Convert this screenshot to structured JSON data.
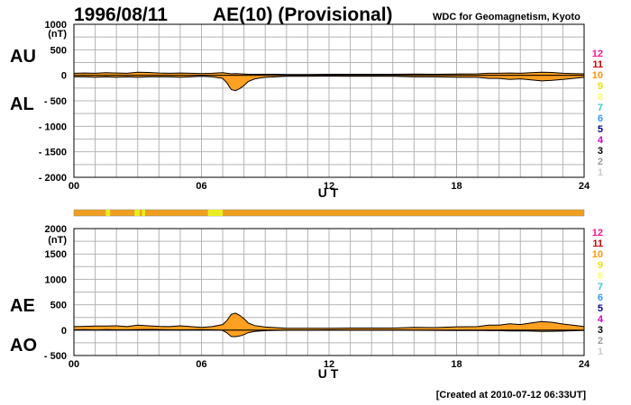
{
  "header": {
    "date": "1996/08/11",
    "title": "AE(10) (Provisional)",
    "source": "WDC for Geomagnetism, Kyoto",
    "created": "[Created at 2010-07-12 06:33UT]"
  },
  "legend": {
    "labels": [
      "12",
      "11",
      "10",
      "9",
      "8",
      "7",
      "6",
      "5",
      "4",
      "3",
      "2",
      "1"
    ],
    "colors": [
      "#ff1493",
      "#cc0000",
      "#ff9900",
      "#e6e600",
      "#ffff66",
      "#33cccc",
      "#3399ff",
      "#000099",
      "#cc00cc",
      "#000000",
      "#999999",
      "#cccccc"
    ]
  },
  "colors": {
    "fill": "#ffa020",
    "line": "#000000",
    "bar": "#f0a020",
    "bar_highlight": "#e6f020",
    "grid": "#b4b4b4"
  },
  "chart_data": [
    {
      "type": "area",
      "name": "AU/AL",
      "panel_labels": [
        "AU",
        "AL"
      ],
      "unit": "(nT)",
      "xlabel": "U T",
      "x_ticks": [
        "00",
        "06",
        "12",
        "18",
        "24"
      ],
      "xlim": [
        0,
        24
      ],
      "ylim": [
        -2000,
        1000
      ],
      "y_ticks": [
        "1000",
        "500",
        "0",
        "- 500",
        "- 1000",
        "- 1500",
        "- 2000"
      ],
      "y_tick_values": [
        1000,
        500,
        0,
        -500,
        -1000,
        -1500,
        -2000
      ],
      "grid": true,
      "x": [
        0,
        0.5,
        1,
        1.5,
        2,
        2.5,
        3,
        3.5,
        4,
        4.5,
        5,
        5.5,
        6,
        6.5,
        7,
        7.2,
        7.4,
        7.6,
        7.8,
        8,
        8.2,
        8.5,
        9,
        9.5,
        10,
        11,
        12,
        13,
        14,
        15,
        16,
        17,
        18,
        19,
        19.5,
        20,
        20.5,
        21,
        21.5,
        22,
        22.5,
        23,
        23.5,
        24
      ],
      "series": [
        {
          "name": "AU",
          "values": [
            40,
            45,
            40,
            50,
            45,
            40,
            60,
            55,
            45,
            40,
            45,
            40,
            35,
            40,
            50,
            40,
            30,
            35,
            30,
            25,
            20,
            20,
            20,
            20,
            15,
            15,
            20,
            20,
            20,
            20,
            25,
            20,
            25,
            30,
            40,
            40,
            45,
            40,
            50,
            60,
            55,
            40,
            35,
            30
          ]
        },
        {
          "name": "AL",
          "values": [
            -30,
            -30,
            -40,
            -30,
            -40,
            -30,
            -40,
            -30,
            -30,
            -30,
            -40,
            -30,
            -20,
            -30,
            -60,
            -150,
            -280,
            -300,
            -260,
            -200,
            -120,
            -70,
            -40,
            -30,
            -20,
            -20,
            -15,
            -20,
            -20,
            -20,
            -30,
            -30,
            -40,
            -40,
            -60,
            -60,
            -80,
            -70,
            -90,
            -110,
            -100,
            -80,
            -60,
            -40
          ]
        }
      ]
    },
    {
      "type": "area",
      "name": "AE/AO",
      "panel_labels": [
        "AE",
        "AO"
      ],
      "unit": "(nT)",
      "xlabel": "U T",
      "x_ticks": [
        "00",
        "06",
        "12",
        "18",
        "24"
      ],
      "xlim": [
        0,
        24
      ],
      "ylim": [
        -500,
        2000
      ],
      "y_ticks": [
        "2000",
        "1500",
        "1000",
        "500",
        "0",
        "- 500"
      ],
      "y_tick_values": [
        2000,
        1500,
        1000,
        500,
        0,
        -500
      ],
      "grid": true,
      "x": [
        0,
        0.5,
        1,
        1.5,
        2,
        2.5,
        3,
        3.5,
        4,
        4.5,
        5,
        5.5,
        6,
        6.5,
        7,
        7.2,
        7.4,
        7.6,
        7.8,
        8,
        8.2,
        8.5,
        9,
        9.5,
        10,
        11,
        12,
        13,
        14,
        15,
        16,
        17,
        18,
        19,
        19.5,
        20,
        20.5,
        21,
        21.5,
        22,
        22.5,
        23,
        23.5,
        24
      ],
      "series": [
        {
          "name": "AE",
          "values": [
            70,
            75,
            80,
            80,
            85,
            70,
            100,
            85,
            75,
            70,
            85,
            70,
            55,
            70,
            110,
            190,
            310,
            335,
            290,
            225,
            140,
            90,
            60,
            50,
            35,
            35,
            35,
            40,
            40,
            40,
            55,
            50,
            65,
            70,
            100,
            100,
            125,
            110,
            140,
            170,
            155,
            120,
            95,
            70
          ]
        },
        {
          "name": "AO",
          "values": [
            5,
            8,
            0,
            10,
            3,
            5,
            10,
            13,
            8,
            5,
            3,
            5,
            8,
            5,
            -5,
            -55,
            -125,
            -130,
            -115,
            -88,
            -50,
            -25,
            -10,
            -5,
            -3,
            -3,
            3,
            0,
            0,
            0,
            -3,
            -5,
            -8,
            -5,
            -10,
            -10,
            -18,
            -15,
            -20,
            -25,
            -23,
            -20,
            -13,
            -5
          ]
        }
      ]
    }
  ],
  "contribution_bar": {
    "segments": [
      {
        "start": 1.5,
        "end": 1.7,
        "highlight": true
      },
      {
        "start": 2.85,
        "end": 3.1,
        "highlight": true
      },
      {
        "start": 3.2,
        "end": 3.35,
        "highlight": true
      },
      {
        "start": 6.3,
        "end": 7.0,
        "highlight": true
      }
    ]
  }
}
